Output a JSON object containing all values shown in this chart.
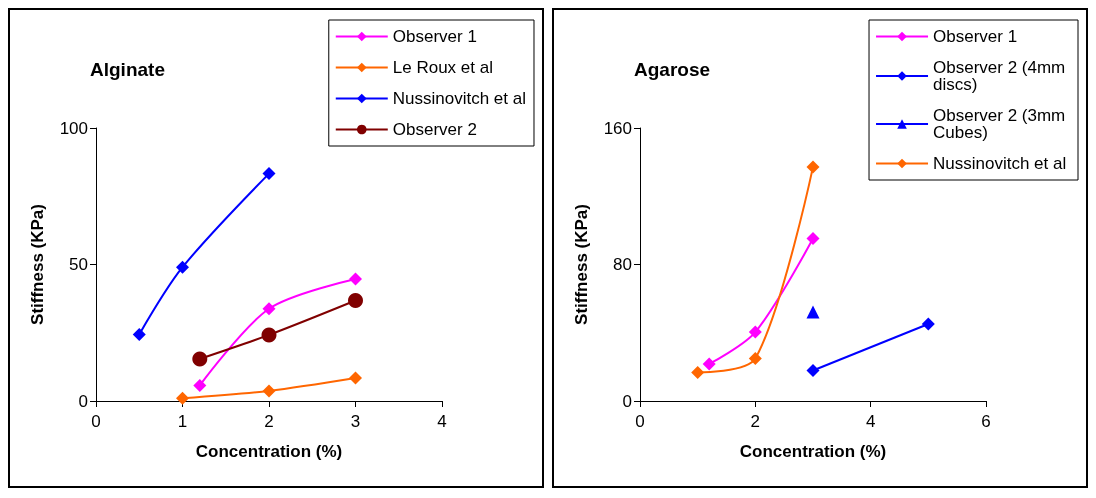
{
  "chart_data": [
    {
      "type": "line",
      "title": "Alginate",
      "xlabel": "Concentration (%)",
      "ylabel": "Stiffness (KPa)",
      "xlim": [
        0,
        4
      ],
      "xticks": [
        0,
        1,
        2,
        3,
        4
      ],
      "ylim": [
        0,
        100
      ],
      "yticks": [
        0,
        50,
        100
      ],
      "grid": false,
      "legend": "top right",
      "series": [
        {
          "name": "Observer 1",
          "color": "#ff00ff",
          "marker": "diamond",
          "x": [
            1.2,
            2,
            3
          ],
          "values": [
            5.7,
            33.8,
            44.7
          ]
        },
        {
          "name": "Le Roux et al",
          "color": "#ff6600",
          "marker": "diamond",
          "x": [
            1,
            2,
            3
          ],
          "values": [
            1,
            3.7,
            8.4
          ]
        },
        {
          "name": "Nussinovitch et al",
          "color": "#0000ff",
          "marker": "diamond",
          "x": [
            0.5,
            1,
            2
          ],
          "values": [
            24.4,
            49,
            83.3
          ]
        },
        {
          "name": "Observer 2",
          "color": "#800000",
          "marker": "circle",
          "x": [
            1.2,
            2,
            3
          ],
          "values": [
            15.4,
            24.2,
            36.8
          ]
        }
      ]
    },
    {
      "type": "line",
      "title": "Agarose",
      "xlabel": "Concentration (%)",
      "ylabel": "Stiffness (KPa)",
      "xlim": [
        0,
        6
      ],
      "xticks": [
        0,
        2,
        4,
        6
      ],
      "ylim": [
        0,
        160
      ],
      "yticks": [
        0,
        80,
        160
      ],
      "grid": false,
      "legend": "top right",
      "series": [
        {
          "name": "Observer 1",
          "color": "#ff00ff",
          "marker": "diamond",
          "x": [
            1.2,
            2,
            3
          ],
          "values": [
            21.7,
            40.4,
            95.2
          ]
        },
        {
          "name": "Observer 2 (4mm discs)",
          "color": "#0000ff",
          "marker": "diamond",
          "x": [
            3,
            5
          ],
          "values": [
            17.9,
            45.1
          ]
        },
        {
          "name": "Observer 2 (3mm Cubes)",
          "color": "#0000ff",
          "marker": "triangle",
          "x": [
            3
          ],
          "values": [
            52.1
          ]
        },
        {
          "name": "Nussinovitch et al",
          "color": "#ff6600",
          "marker": "diamond",
          "x": [
            1,
            2,
            3
          ],
          "values": [
            16.7,
            24.9,
            137.2
          ]
        }
      ]
    }
  ]
}
